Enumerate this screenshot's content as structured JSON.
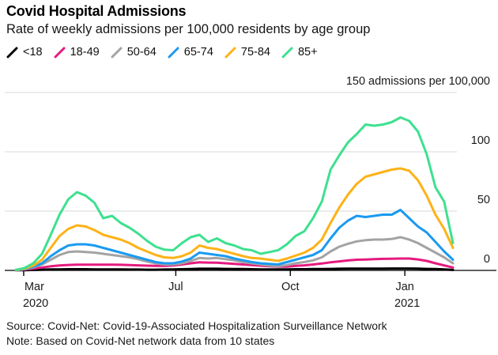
{
  "header": {
    "title": "Covid Hospital Admissions",
    "subtitle": "Rate of weekly admissions per 100,000 residents by age group"
  },
  "chart_data": {
    "type": "line",
    "title": "Covid Hospital Admissions",
    "subtitle": "Rate of weekly admissions per 100,000 residents by age group",
    "ylabel": "admissions per 100,000",
    "y_axis": {
      "side": "right",
      "range": [
        0,
        150
      ],
      "tick_labels": [
        "0",
        "50",
        "100"
      ],
      "tick_values": [
        0,
        50,
        100
      ],
      "grid_values": [
        50,
        100,
        150
      ],
      "top_label": "150 admissions per 100,000",
      "grid": true
    },
    "x_axis": {
      "unit": "week-index (weekly points, late Feb 2020 through early Feb 2021)",
      "ticks": [
        {
          "label": "Mar",
          "sublabel": "2020",
          "week": 0.9
        },
        {
          "label": "Jul",
          "sublabel": "",
          "week": 18.3
        },
        {
          "label": "Oct",
          "sublabel": "",
          "week": 31.4
        },
        {
          "label": "Jan",
          "sublabel": "2021",
          "week": 44.5
        }
      ]
    },
    "legend_position": "top-left",
    "series": [
      {
        "name": "<18",
        "color": "#000000",
        "values": [
          0.1,
          0.2,
          0.4,
          0.6,
          0.8,
          0.9,
          1,
          1,
          1,
          0.9,
          0.9,
          0.8,
          0.8,
          0.7,
          0.7,
          0.6,
          0.6,
          0.7,
          0.8,
          1,
          1.2,
          1.4,
          1.4,
          1.4,
          1.3,
          1.2,
          1.1,
          1,
          0.9,
          0.8,
          0.8,
          0.9,
          1,
          1,
          1.1,
          1.2,
          1.3,
          1.4,
          1.5,
          1.5,
          1.5,
          1.5,
          1.5,
          1.6,
          1.6,
          1.6,
          1.5,
          1.3,
          1.1,
          0.8,
          0.4
        ]
      },
      {
        "name": "18-49",
        "color": "#E51A7E",
        "values": [
          0.2,
          0.7,
          1.5,
          2.5,
          3.5,
          4.2,
          4.6,
          4.8,
          4.8,
          4.8,
          4.8,
          4.8,
          4.7,
          4.5,
          4.3,
          4,
          3.8,
          3.8,
          4.2,
          5,
          6,
          6.8,
          6.6,
          6.5,
          6,
          5.5,
          5,
          4.5,
          4,
          3.5,
          3.2,
          3.2,
          3.8,
          4.3,
          5,
          5.8,
          6.8,
          7.6,
          8.4,
          9,
          9.2,
          9.5,
          9.7,
          9.8,
          10,
          10,
          9.3,
          8,
          6,
          4.2,
          2.5
        ]
      },
      {
        "name": "50-64",
        "color": "#A3A3A3",
        "values": [
          0.3,
          1,
          2.5,
          5,
          9,
          13,
          15.5,
          16,
          15.5,
          15,
          14,
          13,
          12,
          11,
          9.5,
          7.5,
          6,
          5,
          5,
          6,
          8,
          10.5,
          10,
          10.5,
          9.5,
          8.5,
          7,
          6,
          5,
          4,
          3.5,
          4.5,
          6,
          7,
          8.5,
          11,
          16,
          20,
          22.5,
          24.5,
          25.5,
          26,
          26,
          26.5,
          28,
          26,
          23,
          19,
          15,
          11,
          6
        ]
      },
      {
        "name": "65-74",
        "color": "#1A9AF0",
        "values": [
          0.4,
          1.2,
          3,
          6,
          12,
          17,
          21,
          22,
          22,
          21,
          19,
          17,
          15,
          13,
          11,
          9,
          7,
          6,
          6,
          7.5,
          10,
          15,
          14,
          13,
          12,
          10,
          8.5,
          7,
          6,
          5.5,
          5,
          7,
          9,
          11,
          13,
          17,
          27,
          36,
          42,
          46,
          45,
          46,
          47,
          47,
          51,
          44,
          37,
          32,
          24,
          16,
          9
        ]
      },
      {
        "name": "75-84",
        "color": "#FDB217",
        "values": [
          0.4,
          1.5,
          4,
          9,
          19,
          29,
          35,
          38,
          37,
          34,
          30,
          28,
          26,
          23,
          19,
          16,
          13,
          11,
          10.5,
          12,
          15,
          21,
          19,
          18,
          16,
          14,
          12,
          10.5,
          10,
          9,
          8,
          10,
          12.5,
          15,
          19,
          26,
          40,
          53,
          64,
          73,
          79,
          81,
          83,
          85,
          86,
          84,
          76,
          63,
          47,
          35,
          19
        ]
      },
      {
        "name": "85+",
        "color": "#3EE08F",
        "values": [
          0.5,
          2,
          6,
          14,
          30,
          47,
          60,
          66,
          63,
          57,
          44,
          46,
          40,
          36,
          31,
          25,
          20,
          17.5,
          17,
          23,
          28,
          30,
          24,
          27,
          23,
          21,
          18,
          17,
          14,
          15.5,
          17,
          22,
          29,
          33,
          44,
          58,
          85,
          97,
          108,
          115,
          123,
          122,
          123,
          125,
          129,
          126,
          117,
          98,
          70,
          58,
          23
        ]
      }
    ],
    "colors": {
      "grid": "#D9D9D9",
      "axis": "#000000",
      "axis_text": "#1a1a1a"
    }
  },
  "footer": {
    "source": "Source: Covid-Net: Covid-19-Associated Hospitalization Surveillance Network",
    "note": "Note: Based on Covid-Net network data from 10 states"
  }
}
